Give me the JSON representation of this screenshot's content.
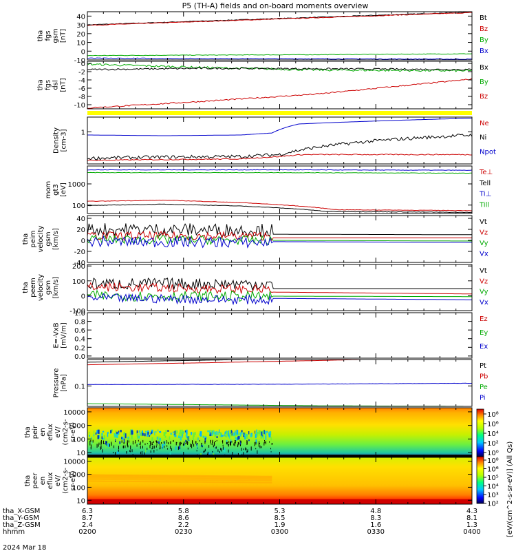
{
  "title": "P5 (TH-A) fields and on-board moments overview",
  "chart_data": {
    "type": "line",
    "panels": [
      {
        "id": "fgs_gsm",
        "ylabel": [
          "tha",
          "fgs",
          "gsm",
          "[nT]"
        ],
        "ylim": [
          -10,
          45
        ],
        "ticks": [
          -10,
          0,
          10,
          20,
          30,
          40
        ],
        "ticklabels": [
          "-10",
          "0",
          "10",
          "20",
          "30",
          "40"
        ],
        "legend": [
          {
            "name": "Bt",
            "color": "#000000"
          },
          {
            "name": "Bz",
            "color": "#cc0000"
          },
          {
            "name": "By",
            "color": "#00aa00"
          },
          {
            "name": "Bx",
            "color": "#0000cc"
          }
        ],
        "series": [
          {
            "name": "Bt",
            "color": "#000000",
            "x": [
              0,
              1
            ],
            "y": [
              30,
              44.5
            ],
            "noise": 0.4
          },
          {
            "name": "Bz",
            "color": "#cc0000",
            "x": [
              0,
              1
            ],
            "y": [
              29.5,
              44
            ],
            "noise": 0.4
          },
          {
            "name": "By",
            "color": "#00aa00",
            "x": [
              0,
              0.3,
              0.6,
              1
            ],
            "y": [
              -5,
              -4.5,
              -4,
              -3
            ],
            "noise": 0.3
          },
          {
            "name": "Bx",
            "color": "#0000cc",
            "x": [
              0,
              0.3,
              0.6,
              1
            ],
            "y": [
              -8,
              -8.4,
              -8.8,
              -9.2
            ],
            "noise": 0.4
          }
        ]
      },
      {
        "id": "fgs_dsl",
        "ylabel": [
          "tha",
          "fgs",
          "dsl",
          "[nT]"
        ],
        "ylim": [
          -11,
          0.5
        ],
        "ticks": [
          -10,
          -8,
          -6,
          -4,
          -2,
          0
        ],
        "ticklabels": [
          "-10",
          "-8",
          "-6",
          "-4",
          "-2",
          "0"
        ],
        "legend": [
          {
            "name": "Bx",
            "color": "#000000"
          },
          {
            "name": "By",
            "color": "#00aa00"
          },
          {
            "name": "Bz",
            "color": "#cc0000"
          }
        ],
        "series": [
          {
            "name": "By",
            "color": "#00aa00",
            "x": [
              0,
              0.15,
              0.3,
              0.45,
              0.6,
              1
            ],
            "y": [
              -0.2,
              -0.6,
              -1.0,
              -1.3,
              -1.6,
              -1.8
            ],
            "noise": 0.25
          },
          {
            "name": "Bx",
            "color": "#000000",
            "x": [
              0,
              0.3,
              0.6,
              1
            ],
            "y": [
              -1.5,
              -1.2,
              -1.3,
              -1.5
            ],
            "noise": 0.2
          },
          {
            "name": "Bz",
            "color": "#cc0000",
            "x": [
              0,
              0.3,
              0.6,
              1
            ],
            "y": [
              -10.8,
              -9.2,
              -7.4,
              -3.8
            ],
            "noise": 0.15
          }
        ]
      },
      {
        "id": "density",
        "ylabel": [
          "Density",
          "[cm-3]"
        ],
        "log": true,
        "ylim": [
          0.05,
          4
        ],
        "ticks": [
          1
        ],
        "ticklabels": [
          "1"
        ],
        "legend": [
          {
            "name": "Ne",
            "color": "#cc0000"
          },
          {
            "name": "Ni",
            "color": "#000000"
          },
          {
            "name": "Npot",
            "color": "#0000cc"
          }
        ],
        "series": [
          {
            "name": "Npot",
            "color": "#0000cc",
            "x": [
              0,
              0.2,
              0.4,
              0.48,
              0.55,
              1
            ],
            "y": [
              0.75,
              0.7,
              0.75,
              0.9,
              2.1,
              3.6
            ],
            "noise": 0
          },
          {
            "name": "Ni",
            "color": "#000000",
            "x": [
              0,
              0.2,
              0.4,
              0.5,
              0.56,
              1
            ],
            "y": [
              0.085,
              0.095,
              0.1,
              0.12,
              0.19,
              0.75
            ],
            "noise": 0.35
          },
          {
            "name": "Ne",
            "color": "#cc0000",
            "x": [
              0,
              0.2,
              0.4,
              0.5,
              0.56,
              1
            ],
            "y": [
              0.07,
              0.075,
              0.08,
              0.1,
              0.12,
              0.12
            ],
            "noise": 0.1
          }
        ]
      },
      {
        "id": "moments_temp",
        "ylabel": [
          "mom",
          "gt3",
          "[eV]"
        ],
        "log": true,
        "ylim": [
          40,
          7000
        ],
        "ticks": [
          100,
          1000
        ],
        "ticklabels": [
          "100",
          "1000"
        ],
        "legend": [
          {
            "name": "Te⊥",
            "color": "#cc0000"
          },
          {
            "name": "Tell",
            "color": "#000000"
          },
          {
            "name": "Ti⊥",
            "color": "#0000cc"
          },
          {
            "name": "Till",
            "color": "#00aa00"
          }
        ],
        "series": [
          {
            "name": "Ti⊥",
            "color": "#0000cc",
            "x": [
              0,
              0.5,
              1
            ],
            "y": [
              4600,
              4600,
              4400
            ],
            "noise": 0.05
          },
          {
            "name": "Till",
            "color": "#00aa00",
            "x": [
              0,
              0.5,
              1
            ],
            "y": [
              3400,
              3400,
              3200
            ],
            "noise": 0.05
          },
          {
            "name": "Te⊥",
            "color": "#cc0000",
            "x": [
              0,
              0.2,
              0.4,
              0.55,
              0.65,
              1
            ],
            "y": [
              150,
              170,
              130,
              90,
              60,
              55
            ],
            "noise": 0.05
          },
          {
            "name": "Tell",
            "color": "#000000",
            "x": [
              0,
              0.2,
              0.4,
              0.55,
              0.62,
              1
            ],
            "y": [
              95,
              110,
              90,
              65,
              50,
              45
            ],
            "noise": 0.05
          }
        ]
      },
      {
        "id": "peim_v",
        "ylabel": [
          "tha",
          "peim",
          "velocity",
          "gsm",
          "[km/s]"
        ],
        "ylim": [
          -40,
          45
        ],
        "ticks": [
          -40,
          -20,
          0,
          20,
          40
        ],
        "ticklabels": [
          "-40",
          "-20",
          "0",
          "20",
          "40"
        ],
        "legend": [
          {
            "name": "Vt",
            "color": "#000000"
          },
          {
            "name": "Vz",
            "color": "#cc0000"
          },
          {
            "name": "Vy",
            "color": "#00aa00"
          },
          {
            "name": "Vx",
            "color": "#0000cc"
          }
        ],
        "series": [
          {
            "name": "Vt",
            "color": "#000000",
            "x": [
              0,
              1
            ],
            "y": [
              20,
              17
            ],
            "noise": 12
          },
          {
            "name": "Vz",
            "color": "#cc0000",
            "x": [
              0,
              1
            ],
            "y": [
              8,
              8
            ],
            "noise": 8
          },
          {
            "name": "Vy",
            "color": "#00aa00",
            "x": [
              0,
              1
            ],
            "y": [
              2,
              -2
            ],
            "noise": 8
          },
          {
            "name": "Vx",
            "color": "#0000cc",
            "x": [
              0,
              1
            ],
            "y": [
              -2,
              -6
            ],
            "noise": 10
          }
        ]
      },
      {
        "id": "peem_v",
        "ylabel": [
          "tha",
          "peem",
          "velocity",
          "gsm",
          "[km/s]"
        ],
        "ylim": [
          -100,
          210
        ],
        "ticks": [
          -100,
          0,
          100,
          200
        ],
        "ticklabels": [
          "-100",
          "0",
          "100",
          "200"
        ],
        "legend": [
          {
            "name": "Vt",
            "color": "#000000"
          },
          {
            "name": "Vz",
            "color": "#cc0000"
          },
          {
            "name": "Vy",
            "color": "#00aa00"
          },
          {
            "name": "Vx",
            "color": "#0000cc"
          }
        ],
        "series": [
          {
            "name": "Vt",
            "color": "#000000",
            "x": [
              0,
              1
            ],
            "y": [
              80,
              80
            ],
            "noise": 40
          },
          {
            "name": "Vz",
            "color": "#cc0000",
            "x": [
              0,
              1
            ],
            "y": [
              60,
              20
            ],
            "noise": 30
          },
          {
            "name": "Vy",
            "color": "#00aa00",
            "x": [
              0,
              1
            ],
            "y": [
              0,
              -10
            ],
            "noise": 35
          },
          {
            "name": "Vx",
            "color": "#0000cc",
            "x": [
              0,
              1
            ],
            "y": [
              -15,
              -45
            ],
            "noise": 30
          }
        ]
      },
      {
        "id": "efield",
        "ylabel": [
          "E=-VxB",
          "[mV/m]"
        ],
        "ylim": [
          -0.05,
          1.0
        ],
        "ticks": [
          0,
          0.2,
          0.4,
          0.6,
          0.8,
          1.0
        ],
        "ticklabels": [
          "0.0",
          "0.2",
          "0.4",
          "0.6",
          "0.8",
          "1.0"
        ],
        "legend": [
          {
            "name": "Ez",
            "color": "#cc0000"
          },
          {
            "name": "Ey",
            "color": "#00aa00"
          },
          {
            "name": "Ex",
            "color": "#0000cc"
          }
        ],
        "series": []
      },
      {
        "id": "pressure",
        "ylabel": [
          "Pressure",
          "[nPa]"
        ],
        "log": true,
        "ylim": [
          0.025,
          0.6
        ],
        "ticks": [
          0.1
        ],
        "ticklabels": [
          "0.1"
        ],
        "legend": [
          {
            "name": "Pt",
            "color": "#000000"
          },
          {
            "name": "Pb",
            "color": "#cc0000"
          },
          {
            "name": "Pe",
            "color": "#00aa00"
          },
          {
            "name": "Pi",
            "color": "#0000cc"
          }
        ],
        "series": [
          {
            "name": "Pt",
            "color": "#000000",
            "x": [
              0,
              0.5,
              1
            ],
            "y": [
              0.5,
              0.62,
              0.75
            ],
            "noise": 0
          },
          {
            "name": "Pb",
            "color": "#cc0000",
            "x": [
              0,
              0.3,
              0.6,
              1
            ],
            "y": [
              0.42,
              0.48,
              0.56,
              0.7
            ],
            "noise": 0
          },
          {
            "name": "Pi",
            "color": "#0000cc",
            "x": [
              0,
              0.5,
              1
            ],
            "y": [
              0.11,
              0.112,
              0.12
            ],
            "noise": 0.02
          },
          {
            "name": "Pe",
            "color": "#00aa00",
            "x": [
              0,
              0.3,
              0.6,
              1
            ],
            "y": [
              0.03,
              0.028,
              0.026,
              0.025
            ],
            "noise": 0
          }
        ]
      },
      {
        "id": "peir_spec",
        "ylabel": [
          "tha",
          "peir",
          "en",
          "eflux",
          "eV/",
          "(cm2-s-",
          "sr-eV)"
        ],
        "ylim": [
          5,
          20000
        ],
        "log": true,
        "ticks": [
          10,
          100,
          1000,
          10000
        ],
        "ticklabels": [
          "10",
          "100",
          "1000",
          "10000"
        ],
        "legend": []
      },
      {
        "id": "peer_spec",
        "ylabel": [
          "tha",
          "peer",
          "en",
          "eflux",
          "eV/",
          "(cm2-s-",
          "sr-eV)"
        ],
        "ylim": [
          5,
          20000
        ],
        "log": true,
        "ticks": [
          10,
          100,
          1000,
          10000
        ],
        "ticklabels": [
          "10",
          "100",
          "1000",
          "10000"
        ],
        "legend": []
      }
    ],
    "colorbar": {
      "label": "[eV/(cm^2-s-sr-eV)] (All Qs)",
      "ticks": [
        "10⁸",
        "10⁶",
        "10⁴",
        "10²",
        "10⁰",
        "10⁸",
        "10⁶",
        "10⁵",
        "10⁴",
        "10³",
        "10²"
      ]
    },
    "xaxis": {
      "rows": [
        {
          "label": "tha_X-GSM",
          "values": [
            "6.3",
            "5.8",
            "5.3",
            "4.8",
            "4.3"
          ]
        },
        {
          "label": "tha_Y-GSM",
          "values": [
            "8.7",
            "8.6",
            "8.5",
            "8.3",
            "8.1"
          ]
        },
        {
          "label": "tha_Z-GSM",
          "values": [
            "2.4",
            "2.2",
            "1.9",
            "1.6",
            "1.3"
          ]
        },
        {
          "label": "hhmm",
          "values": [
            "0200",
            "0230",
            "0300",
            "0330",
            "0400"
          ]
        }
      ],
      "date": "2024 Mar 18"
    }
  }
}
